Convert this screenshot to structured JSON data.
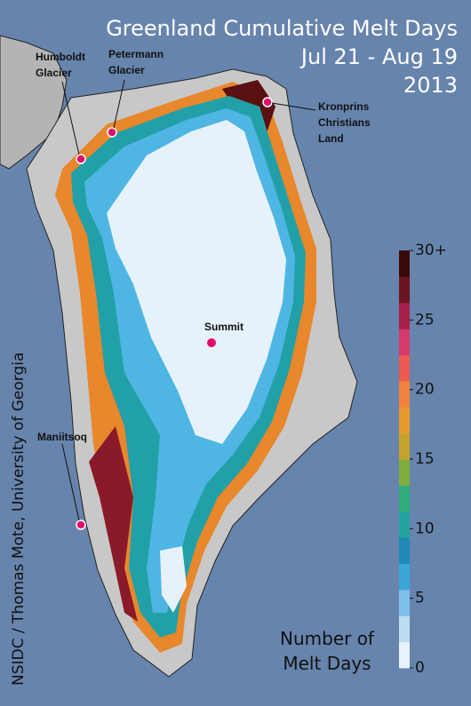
{
  "header": {
    "title": "Greenland Cumulative Melt Days",
    "subtitle": "Jul 21 - Aug 19",
    "year": "2013"
  },
  "credit": "NSIDC / Thomas Mote, University of Georgia",
  "labels": [
    {
      "lines": [
        "Humboldt",
        "Glacier"
      ]
    },
    {
      "lines": [
        "Petermann",
        "Glacier"
      ]
    },
    {
      "lines": [
        "Kronprins",
        "Christians",
        "Land"
      ]
    },
    {
      "lines": [
        "Summit"
      ]
    },
    {
      "lines": [
        "Maniitsoq"
      ]
    }
  ],
  "colorbar": {
    "title": [
      "Number of",
      "Melt Days"
    ],
    "lim": [
      0,
      30
    ],
    "ticks": [
      0,
      5,
      10,
      15,
      20,
      25,
      {
        "value": 30,
        "label": "30+"
      }
    ],
    "colors": [
      "#e8f2fa",
      "#bcdcf2",
      "#7cc0ea",
      "#3aa6d6",
      "#1f8ab8",
      "#23a3a0",
      "#2fae7a",
      "#7fae3a",
      "#c7a22a",
      "#e89a2c",
      "#f0823c",
      "#ec5a50",
      "#d43a6a",
      "#a8204a",
      "#6a1420",
      "#3a0a0a"
    ]
  }
}
